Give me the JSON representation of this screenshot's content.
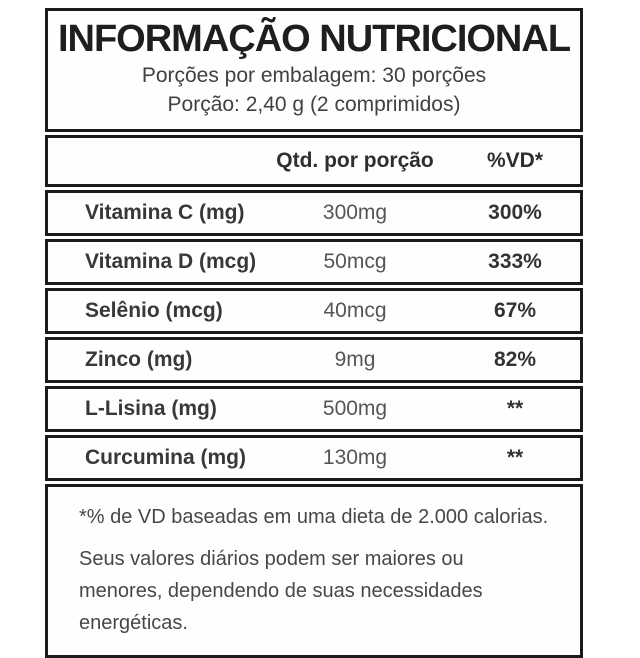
{
  "label": {
    "title": "INFORMAÇÃO NUTRICIONAL",
    "servings_per_package": "Porções por embalagem: 30 porções",
    "serving_size": "Porção: 2,40 g (2 comprimidos)",
    "columns": {
      "quantity_header": "Qtd. por porção",
      "dv_header": "%VD*"
    },
    "rows": [
      {
        "nutrient": "Vitamina C (mg)",
        "quantity": "300mg",
        "dv": "300%"
      },
      {
        "nutrient": "Vitamina D (mcg)",
        "quantity": "50mcg",
        "dv": "333%"
      },
      {
        "nutrient": "Selênio (mcg)",
        "quantity": "40mcg",
        "dv": "67%"
      },
      {
        "nutrient": "Zinco (mg)",
        "quantity": "9mg",
        "dv": "82%"
      },
      {
        "nutrient": "L-Lisina (mg)",
        "quantity": "500mg",
        "dv": "**"
      },
      {
        "nutrient": "Curcumina (mg)",
        "quantity": "130mg",
        "dv": "**"
      }
    ],
    "footnotes": {
      "dv_basis": "*% de VD baseadas em uma dieta de 2.000 calorias.",
      "daily_values": "Seus valores diários podem ser maiores ou menores, dependendo de suas necessidades energéticas."
    },
    "colors": {
      "border": "#1b1b1b",
      "title_text": "#1e1e1e",
      "body_text": "#414141",
      "value_text": "#555555",
      "background": "#ffffff"
    }
  }
}
